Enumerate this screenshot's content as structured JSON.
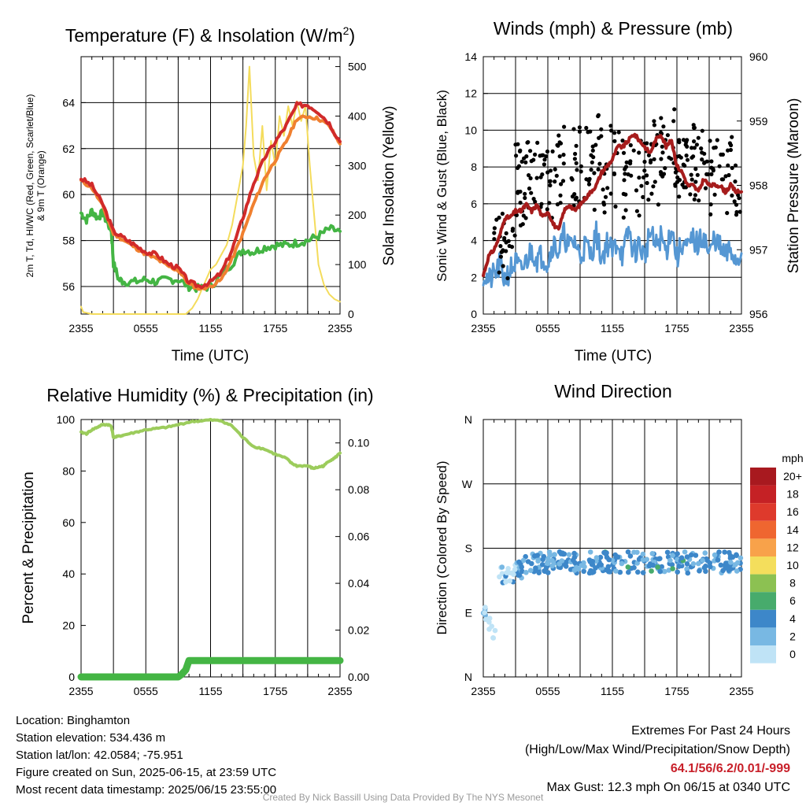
{
  "colors": {
    "temp": "#d12a2a",
    "dewpoint": "#44b544",
    "wchi": "#f09040",
    "t9m": "#f08030",
    "solar": "#f4dc5c",
    "wind": "#5597d3",
    "gust": "#000000",
    "pressure": "#a61c1c",
    "rh": "#9ccc5c",
    "precip": "#44b544"
  },
  "chart_data": [
    {
      "type": "line",
      "title": "Temperature (F) & Insolation (W/m²)",
      "title_main": "Temperature (F) & Insolation (W/m",
      "title_sup": "2",
      "title_end": ")",
      "ylabel_line1": "2m T, Td, HI/WC (Red, Green, Scarlet/Blue)",
      "ylabel_line2": "& 9m T (Orange)",
      "ylabel_right": "Solar Insolation (Yellow)",
      "xlabel": "Time (UTC)",
      "x_ticks": [
        "2355",
        "0555",
        "1155",
        "1755",
        "2355"
      ],
      "y_ticks": [
        "56",
        "58",
        "60",
        "62",
        "64"
      ],
      "y2_ticks": [
        "0",
        "100",
        "200",
        "300",
        "400",
        "500"
      ],
      "ylim": [
        54.8,
        66
      ],
      "y2lim": [
        0,
        520
      ],
      "x_hours": [
        0,
        24
      ],
      "series": [
        {
          "key": "temp",
          "x": [
            0,
            1,
            2,
            3,
            4,
            5,
            6,
            7,
            8,
            9,
            10,
            11,
            12,
            13,
            14,
            15,
            16,
            17,
            18,
            19,
            20,
            21,
            22,
            23,
            24
          ],
          "values": [
            60.7,
            60.4,
            59.6,
            58.4,
            58.1,
            57.8,
            57.5,
            57.4,
            57.0,
            56.8,
            56.2,
            56.0,
            56.2,
            56.6,
            57.6,
            59.0,
            60.5,
            61.6,
            62.3,
            63.0,
            63.9,
            63.9,
            63.6,
            63.1,
            62.3
          ]
        },
        {
          "key": "t9m",
          "x": [
            0,
            1,
            2,
            3,
            4,
            5,
            6,
            7,
            8,
            9,
            10,
            11,
            12,
            13,
            14,
            15,
            16,
            17,
            18,
            19,
            20,
            21,
            22,
            23,
            24
          ],
          "values": [
            60.6,
            60.3,
            59.5,
            58.3,
            58.0,
            57.7,
            57.4,
            57.2,
            56.9,
            56.7,
            56.1,
            55.9,
            56.0,
            56.3,
            57.2,
            58.3,
            59.6,
            60.7,
            61.5,
            62.3,
            63.3,
            63.4,
            63.3,
            63.0,
            62.2
          ]
        },
        {
          "key": "dewpoint",
          "x": [
            0,
            0.5,
            1,
            1.5,
            2,
            2.5,
            2.8,
            3,
            3.5,
            4,
            5,
            6,
            7,
            8,
            9,
            10,
            11,
            12,
            13,
            14,
            15,
            16,
            17,
            18,
            19,
            20,
            21,
            22,
            23,
            24
          ],
          "values": [
            59.2,
            58.9,
            59.3,
            59.0,
            59.2,
            58.7,
            58.5,
            57.0,
            56.3,
            56.2,
            56.2,
            56.3,
            56.2,
            56.3,
            56.3,
            56.0,
            55.9,
            56.0,
            56.5,
            57.0,
            57.6,
            57.5,
            57.7,
            57.8,
            57.8,
            57.9,
            58.0,
            58.2,
            58.5,
            58.4
          ]
        },
        {
          "key": "solar",
          "x": [
            0,
            0.2,
            1,
            6,
            9,
            9.7,
            10.3,
            10.8,
            11.5,
            12,
            12.5,
            13,
            13.5,
            14,
            14.5,
            15,
            15.3,
            15.6,
            16,
            16.4,
            16.8,
            17.2,
            17.6,
            18,
            18.4,
            18.8,
            19.2,
            19.6,
            20,
            20.4,
            20.8,
            21.2,
            21.6,
            22,
            22.5,
            23,
            23.5,
            24
          ],
          "values": [
            15,
            4,
            0,
            0,
            0,
            0,
            12,
            30,
            65,
            90,
            100,
            120,
            140,
            180,
            240,
            300,
            380,
            500,
            320,
            270,
            380,
            250,
            350,
            300,
            400,
            360,
            420,
            380,
            430,
            390,
            420,
            300,
            200,
            100,
            60,
            40,
            30,
            25
          ]
        }
      ]
    },
    {
      "type": "line",
      "title": "Winds (mph) & Pressure (mb)",
      "ylabel": "Sonic Wind & Gust (Blue, Black)",
      "ylabel_right": "Station Pressure (Maroon)",
      "xlabel": "Time (UTC)",
      "x_ticks": [
        "2355",
        "0555",
        "1155",
        "1755",
        "2355"
      ],
      "y_ticks": [
        "0",
        "2",
        "4",
        "6",
        "8",
        "10",
        "12",
        "14"
      ],
      "y2_ticks": [
        "956",
        "957",
        "958",
        "959",
        "960"
      ],
      "ylim": [
        0,
        14
      ],
      "y2lim": [
        956,
        960
      ],
      "series": [
        {
          "key": "wind",
          "x": [
            0,
            0.5,
            1,
            1.5,
            2,
            2.5,
            3,
            3.5,
            4,
            4.5,
            5,
            5.5,
            6,
            6.5,
            7,
            7.5,
            8,
            8.5,
            9,
            9.5,
            10,
            10.5,
            11,
            11.5,
            12,
            12.5,
            13,
            13.5,
            14,
            14.5,
            15,
            15.5,
            16,
            16.5,
            17,
            17.5,
            18,
            18.5,
            19,
            19.5,
            20,
            20.5,
            21,
            21.5,
            22,
            22.5,
            23,
            23.5,
            24
          ],
          "values": [
            2.2,
            1.8,
            2.1,
            2.6,
            1.9,
            2.4,
            2.8,
            2.3,
            2.9,
            3.5,
            3.0,
            3.2,
            2.8,
            3.9,
            3.4,
            4.3,
            3.6,
            4.0,
            3.1,
            3.8,
            3.2,
            4.4,
            3.0,
            3.9,
            3.4,
            4.0,
            3.1,
            4.6,
            3.3,
            3.8,
            3.1,
            4.5,
            3.6,
            4.2,
            3.4,
            4.8,
            3.0,
            3.9,
            3.5,
            4.1,
            3.7,
            4.4,
            3.1,
            4.2,
            3.6,
            3.1,
            3.5,
            2.9,
            3.3
          ]
        },
        {
          "key": "pressure",
          "x": [
            0,
            0.5,
            1,
            1.5,
            2,
            2.5,
            3,
            3.5,
            4,
            4.5,
            5,
            5.5,
            6,
            6.5,
            7,
            7.5,
            8,
            8.5,
            9,
            9.5,
            10,
            10.5,
            11,
            11.5,
            12,
            12.5,
            13,
            13.5,
            14,
            14.5,
            15,
            15.5,
            16,
            16.5,
            17,
            17.5,
            18,
            18.5,
            19,
            19.5,
            20,
            20.5,
            21,
            21.5,
            22,
            22.5,
            23,
            23.5,
            24
          ],
          "values": [
            956.6,
            956.9,
            957.0,
            957.2,
            957.5,
            957.5,
            957.6,
            957.6,
            957.7,
            957.6,
            957.7,
            957.5,
            957.6,
            957.4,
            957.3,
            957.6,
            957.7,
            957.6,
            957.7,
            957.8,
            957.9,
            958.0,
            958.2,
            958.3,
            958.4,
            958.6,
            958.6,
            958.7,
            958.8,
            958.7,
            958.6,
            958.5,
            958.7,
            958.8,
            958.6,
            958.7,
            958.3,
            958.2,
            958.0,
            958.0,
            957.9,
            958.1,
            958.0,
            958.0,
            958.0,
            957.9,
            958.0,
            957.9,
            957.9
          ]
        }
      ]
    },
    {
      "type": "line",
      "title": "Relative Humidity (%) & Precipitation (in)",
      "ylabel": "Percent & Precipitation",
      "x_ticks": [
        "2355",
        "0555",
        "1155",
        "1755",
        "2355"
      ],
      "y_ticks": [
        "0",
        "20",
        "40",
        "60",
        "80",
        "100"
      ],
      "y2_ticks": [
        "0.00",
        "0.02",
        "0.04",
        "0.06",
        "0.08",
        "0.10"
      ],
      "ylim": [
        0,
        100
      ],
      "y2lim": [
        0,
        0.11
      ],
      "series": [
        {
          "key": "rh",
          "x": [
            0,
            0.5,
            1,
            1.5,
            2,
            2.5,
            2.8,
            3,
            3.5,
            4,
            5,
            6,
            7,
            8,
            9,
            10,
            11,
            12,
            13,
            14,
            15,
            16,
            17,
            18,
            19,
            19.5,
            20,
            21,
            21.5,
            22,
            22.5,
            23,
            23.5,
            24
          ],
          "values": [
            95,
            94.5,
            96,
            97,
            98,
            98,
            97.5,
            93,
            93.5,
            94,
            95,
            96,
            96.5,
            97,
            98,
            99,
            99.5,
            99.8,
            99.5,
            97.5,
            93,
            89.5,
            88.5,
            86.5,
            85,
            83,
            82,
            82,
            81,
            81.5,
            82,
            84,
            85,
            87
          ]
        },
        {
          "key": "precip",
          "x": [
            0,
            9,
            9.3,
            9.7,
            10,
            24
          ],
          "values": [
            0,
            0,
            0.001,
            0.003,
            0.007,
            0.007
          ]
        }
      ]
    },
    {
      "type": "scatter",
      "title": "Wind Direction",
      "ylabel": "Direction (Colored By Speed)",
      "x_ticks": [
        "2355",
        "0555",
        "1155",
        "1755",
        "2355"
      ],
      "y_ticks": [
        "N",
        "E",
        "S",
        "W",
        "N"
      ],
      "ylim": [
        0,
        360
      ],
      "legend_title": "mph",
      "legend_labels": [
        "20+",
        "18",
        "16",
        "14",
        "12",
        "10",
        "8",
        "6",
        "4",
        "2",
        "0"
      ],
      "legend_colors": [
        "#a8191f",
        "#c52125",
        "#de3a2c",
        "#ef6630",
        "#f8a24a",
        "#f4de5c",
        "#8cc152",
        "#47ab6c",
        "#3d87c9",
        "#78b8e3",
        "#bfe3f6"
      ]
    }
  ],
  "footer": {
    "location": "Location: Binghamton",
    "elevation": "Station elevation: 534.436 m",
    "latlon": "Station lat/lon: 42.0584; -75.951",
    "created": "Figure created on Sun, 2025-06-15, at 23:59 UTC",
    "recent": "Most recent data timestamp: 2025/06/15 23:55:00",
    "extremes_title": "Extremes For Past 24 Hours",
    "extremes_sub": "(High/Low/Max Wind/Precipitation/Snow Depth)",
    "extremes_values": "64.1/56/6.2/0.01/-999",
    "max_gust": "Max Gust: 12.3 mph On 06/15 at 0340 UTC",
    "credit": "Created By Nick Bassill Using Data Provided By The NYS Mesonet"
  }
}
